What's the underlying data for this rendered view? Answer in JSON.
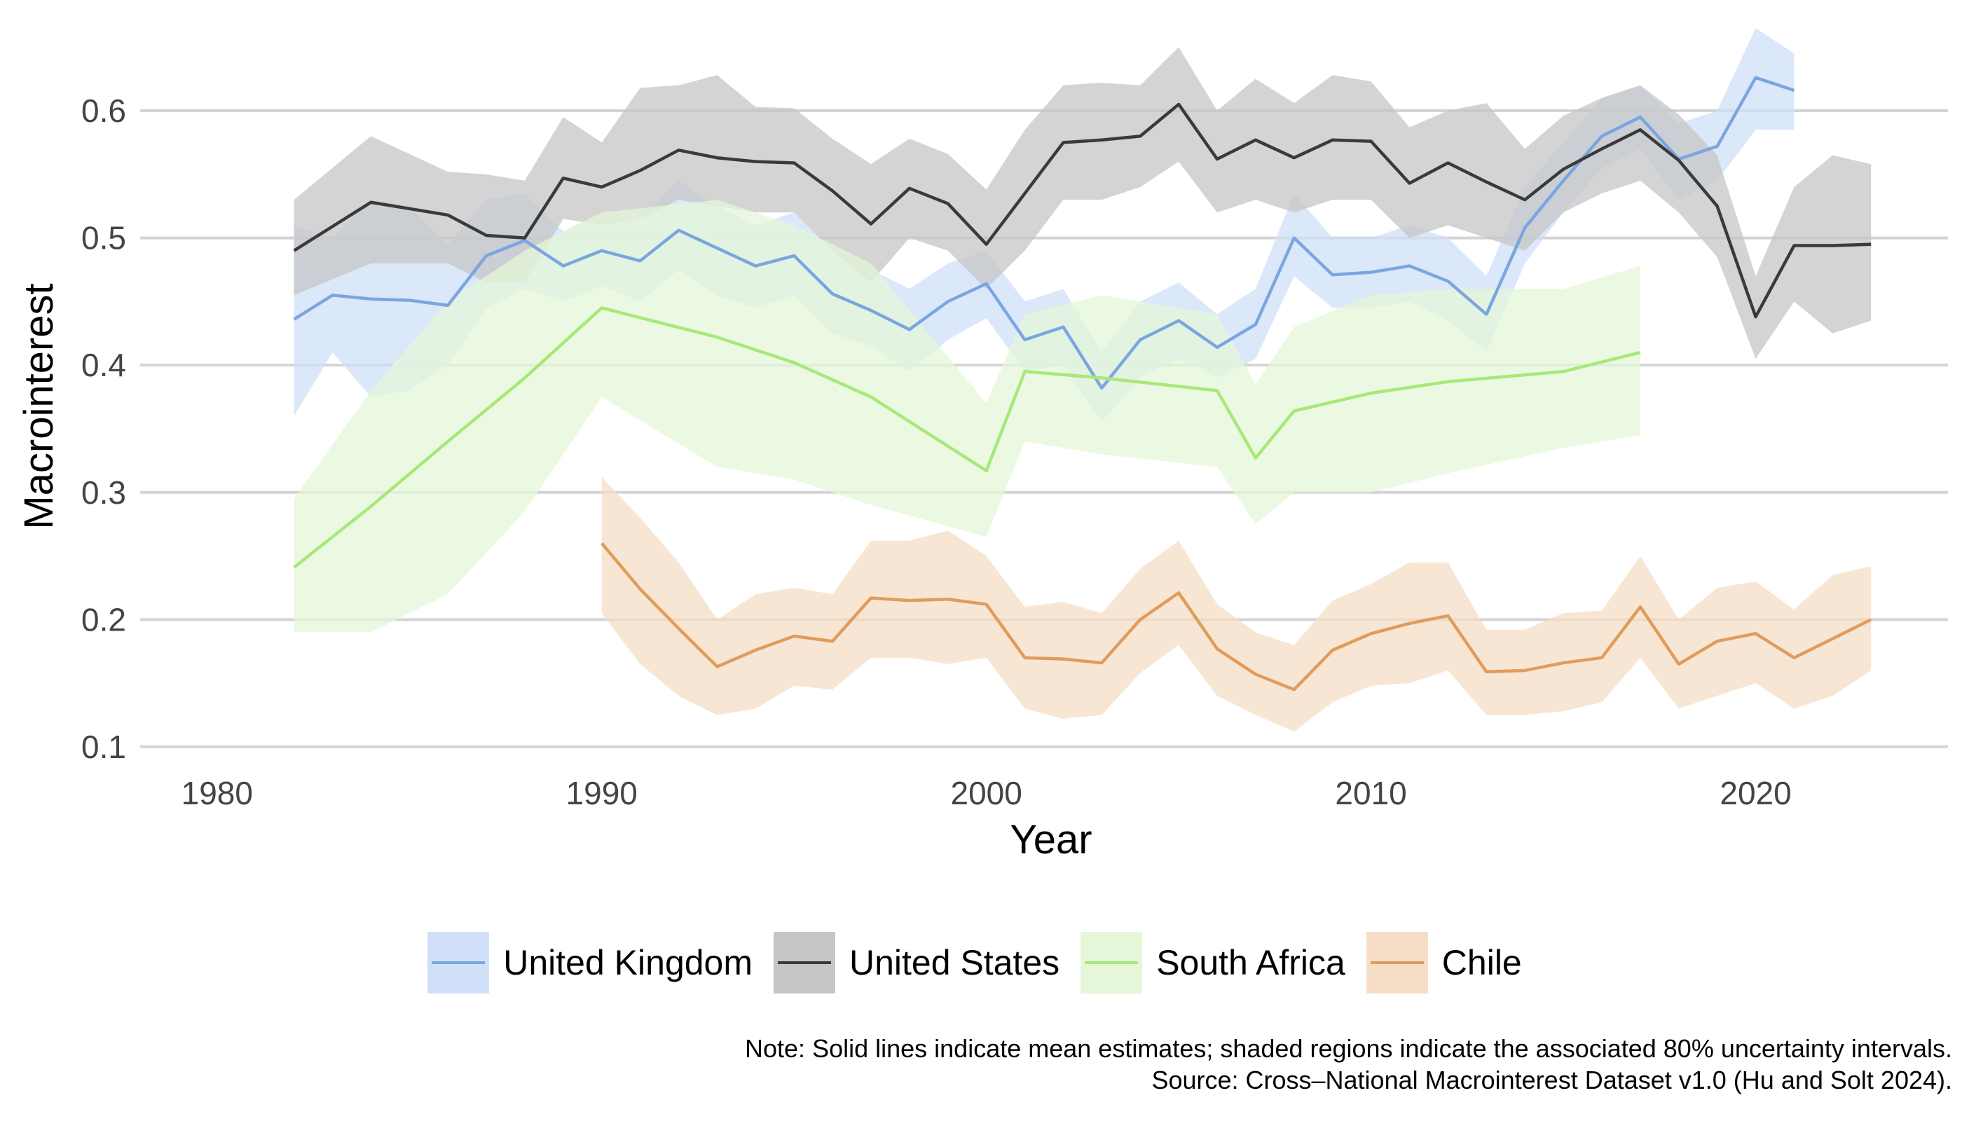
{
  "chart_data": {
    "type": "line",
    "xlabel": "Year",
    "ylabel": "Macrointerest",
    "xlim": [
      1978,
      2025
    ],
    "ylim": [
      0.095,
      0.665
    ],
    "x_ticks": [
      1980,
      1990,
      2000,
      2010,
      2020
    ],
    "y_ticks": [
      0.1,
      0.2,
      0.3,
      0.4,
      0.5,
      0.6
    ],
    "y_tick_labels": [
      "0.1",
      "0.2",
      "0.3",
      "0.4",
      "0.5",
      "0.6"
    ],
    "grid": "horizontal major",
    "legend_position": "bottom",
    "series": [
      {
        "name": "United Kingdom",
        "line_color": "#7aa6e0",
        "band_color": "#cfe0f8",
        "years": [
          1982,
          1983,
          1984,
          1985,
          1986,
          1987,
          1988,
          1989,
          1990,
          1991,
          1992,
          1993,
          1994,
          1995,
          1996,
          1997,
          1998,
          1999,
          2000,
          2001,
          2002,
          2003,
          2004,
          2005,
          2006,
          2007,
          2008,
          2009,
          2010,
          2011,
          2012,
          2013,
          2014,
          2015,
          2016,
          2017,
          2018,
          2019,
          2020,
          2021
        ],
        "mean": [
          0.436,
          0.455,
          0.452,
          0.451,
          0.447,
          0.486,
          0.498,
          0.478,
          0.49,
          0.482,
          0.506,
          0.492,
          0.478,
          0.486,
          0.456,
          0.443,
          0.428,
          0.45,
          0.464,
          0.42,
          0.43,
          0.382,
          0.42,
          0.435,
          0.414,
          0.432,
          0.5,
          0.471,
          0.473,
          0.478,
          0.466,
          0.44,
          0.508,
          0.545,
          0.58,
          0.595,
          0.562,
          0.572,
          0.626,
          0.616
        ],
        "lower": [
          0.36,
          0.41,
          0.375,
          0.38,
          0.4,
          0.445,
          0.46,
          0.45,
          0.462,
          0.45,
          0.475,
          0.455,
          0.445,
          0.455,
          0.425,
          0.415,
          0.395,
          0.42,
          0.437,
          0.395,
          0.4,
          0.355,
          0.39,
          0.405,
          0.39,
          0.405,
          0.47,
          0.445,
          0.445,
          0.45,
          0.435,
          0.41,
          0.48,
          0.52,
          0.555,
          0.57,
          0.53,
          0.545,
          0.585,
          0.585
        ],
        "upper": [
          0.51,
          0.5,
          0.53,
          0.525,
          0.495,
          0.53,
          0.535,
          0.505,
          0.52,
          0.515,
          0.545,
          0.525,
          0.51,
          0.52,
          0.49,
          0.475,
          0.46,
          0.48,
          0.49,
          0.45,
          0.46,
          0.41,
          0.45,
          0.465,
          0.44,
          0.46,
          0.535,
          0.5,
          0.5,
          0.51,
          0.5,
          0.47,
          0.54,
          0.575,
          0.61,
          0.62,
          0.59,
          0.6,
          0.665,
          0.645
        ]
      },
      {
        "name": "United States",
        "line_color": "#3a3a3a",
        "band_color": "#c6c6c6",
        "years": [
          1982,
          1984,
          1986,
          1987,
          1988,
          1989,
          1990,
          1991,
          1992,
          1993,
          1994,
          1995,
          1996,
          1997,
          1998,
          1999,
          2000,
          2001,
          2002,
          2003,
          2004,
          2005,
          2006,
          2007,
          2008,
          2009,
          2010,
          2011,
          2012,
          2013,
          2014,
          2015,
          2016,
          2017,
          2018,
          2019,
          2020,
          2021,
          2022,
          2023
        ],
        "mean": [
          0.49,
          0.528,
          0.518,
          0.502,
          0.5,
          0.547,
          0.54,
          0.553,
          0.569,
          0.563,
          0.56,
          0.559,
          0.537,
          0.511,
          0.539,
          0.527,
          0.495,
          0.535,
          0.575,
          0.577,
          0.58,
          0.605,
          0.562,
          0.577,
          0.563,
          0.577,
          0.576,
          0.543,
          0.559,
          0.544,
          0.53,
          0.554,
          0.57,
          0.585,
          0.561,
          0.525,
          0.438,
          0.494,
          0.494,
          0.495
        ],
        "lower": [
          0.455,
          0.48,
          0.48,
          0.465,
          0.465,
          0.515,
          0.51,
          0.515,
          0.53,
          0.525,
          0.52,
          0.52,
          0.49,
          0.465,
          0.5,
          0.49,
          0.46,
          0.49,
          0.53,
          0.53,
          0.54,
          0.56,
          0.52,
          0.53,
          0.52,
          0.53,
          0.53,
          0.5,
          0.51,
          0.5,
          0.49,
          0.52,
          0.535,
          0.545,
          0.52,
          0.485,
          0.405,
          0.45,
          0.425,
          0.435
        ],
        "upper": [
          0.53,
          0.58,
          0.552,
          0.55,
          0.545,
          0.595,
          0.575,
          0.618,
          0.62,
          0.628,
          0.603,
          0.602,
          0.578,
          0.558,
          0.578,
          0.566,
          0.538,
          0.585,
          0.62,
          0.622,
          0.62,
          0.65,
          0.6,
          0.625,
          0.606,
          0.628,
          0.623,
          0.587,
          0.6,
          0.606,
          0.57,
          0.596,
          0.61,
          0.62,
          0.597,
          0.565,
          0.47,
          0.54,
          0.565,
          0.558
        ]
      },
      {
        "name": "South Africa",
        "line_color": "#a8e878",
        "band_color": "#e5f7d8",
        "years": [
          1982,
          1984,
          1986,
          1988,
          1990,
          1993,
          1995,
          1997,
          2000,
          2001,
          2003,
          2006,
          2007,
          2008,
          2010,
          2012,
          2015,
          2017
        ],
        "mean": [
          0.241,
          0.289,
          0.34,
          0.39,
          0.445,
          0.422,
          0.402,
          0.375,
          0.317,
          0.395,
          0.39,
          0.38,
          0.327,
          0.364,
          0.378,
          0.387,
          0.395,
          0.41
        ],
        "lower": [
          0.19,
          0.19,
          0.22,
          0.285,
          0.375,
          0.32,
          0.31,
          0.29,
          0.265,
          0.34,
          0.33,
          0.32,
          0.275,
          0.3,
          0.3,
          0.315,
          0.335,
          0.345
        ],
        "upper": [
          0.295,
          0.38,
          0.45,
          0.49,
          0.52,
          0.53,
          0.51,
          0.48,
          0.37,
          0.44,
          0.455,
          0.44,
          0.385,
          0.43,
          0.455,
          0.46,
          0.46,
          0.478
        ]
      },
      {
        "name": "Chile",
        "line_color": "#e09c5c",
        "band_color": "#f6ddc6",
        "years": [
          1990,
          1991,
          1992,
          1993,
          1994,
          1995,
          1996,
          1997,
          1998,
          1999,
          2000,
          2001,
          2002,
          2003,
          2004,
          2005,
          2006,
          2007,
          2008,
          2009,
          2010,
          2011,
          2012,
          2013,
          2014,
          2015,
          2016,
          2017,
          2018,
          2019,
          2020,
          2021,
          2022,
          2023
        ],
        "mean": [
          0.26,
          0.224,
          0.193,
          0.163,
          0.176,
          0.187,
          0.183,
          0.217,
          0.215,
          0.216,
          0.212,
          0.17,
          0.169,
          0.166,
          0.2,
          0.221,
          0.177,
          0.157,
          0.145,
          0.176,
          0.189,
          0.197,
          0.203,
          0.159,
          0.16,
          0.166,
          0.17,
          0.21,
          0.165,
          0.183,
          0.189,
          0.17,
          0.185,
          0.2
        ],
        "lower": [
          0.205,
          0.165,
          0.14,
          0.125,
          0.13,
          0.148,
          0.145,
          0.17,
          0.17,
          0.165,
          0.17,
          0.13,
          0.122,
          0.125,
          0.158,
          0.18,
          0.14,
          0.125,
          0.112,
          0.135,
          0.148,
          0.15,
          0.16,
          0.125,
          0.125,
          0.128,
          0.135,
          0.17,
          0.13,
          0.14,
          0.15,
          0.13,
          0.14,
          0.16
        ],
        "upper": [
          0.312,
          0.28,
          0.245,
          0.2,
          0.22,
          0.225,
          0.22,
          0.262,
          0.262,
          0.27,
          0.25,
          0.21,
          0.214,
          0.205,
          0.24,
          0.262,
          0.212,
          0.19,
          0.18,
          0.215,
          0.228,
          0.245,
          0.245,
          0.192,
          0.192,
          0.205,
          0.207,
          0.25,
          0.2,
          0.225,
          0.23,
          0.208,
          0.235,
          0.242
        ]
      }
    ]
  },
  "note": {
    "line1": "Note: Solid lines indicate mean estimates; shaded regions indicate the associated 80% uncertainty intervals.",
    "line2": "Source: Cross–National Macrointerest Dataset v1.0 (Hu and Solt 2024)."
  }
}
